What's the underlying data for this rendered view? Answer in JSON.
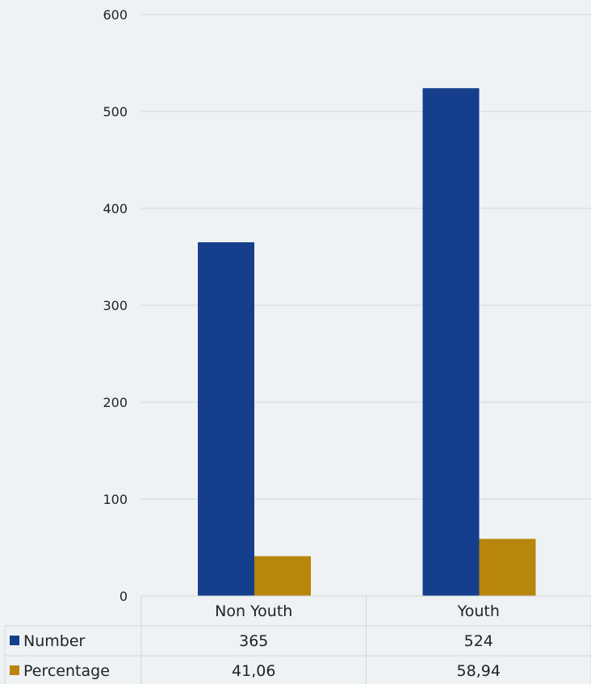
{
  "chart_data": {
    "type": "bar",
    "categories": [
      "Non Youth",
      "Youth"
    ],
    "series": [
      {
        "name": "Number",
        "values": [
          365,
          524
        ],
        "labels": [
          "365",
          "524"
        ],
        "color": "#153f8c"
      },
      {
        "name": "Percentage",
        "values": [
          41.06,
          58.94
        ],
        "labels": [
          "41,06",
          "58,94"
        ],
        "color": "#b8860b"
      }
    ],
    "ylim": [
      0,
      600
    ],
    "yticks": [
      0,
      100,
      200,
      300,
      400,
      500,
      600
    ],
    "grid": true,
    "legend": "data-table",
    "colors": {
      "background": "#eef2f4",
      "grid": "#d0d6da"
    }
  }
}
